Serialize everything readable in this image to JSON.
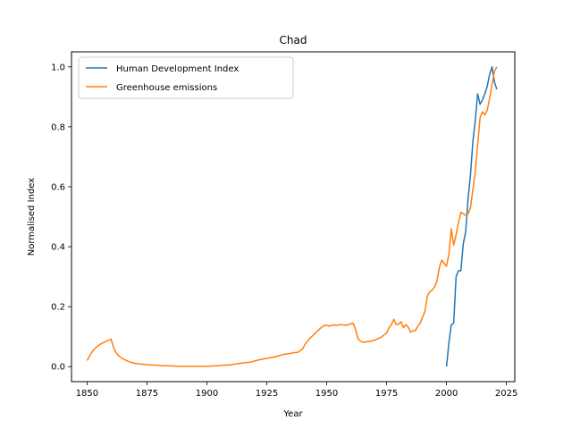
{
  "chart_data": {
    "type": "line",
    "title": "Chad",
    "xlabel": "Year",
    "ylabel": "Normalised Index",
    "xlim": [
      1843.5,
      2028.5
    ],
    "ylim": [
      -0.05,
      1.05
    ],
    "xticks": [
      1850,
      1875,
      1900,
      1925,
      1950,
      1975,
      2000,
      2025
    ],
    "yticks": [
      0.0,
      0.2,
      0.4,
      0.6,
      0.8,
      1.0
    ],
    "xtick_labels": [
      "1850",
      "1875",
      "1900",
      "1925",
      "1950",
      "1975",
      "2000",
      "2025"
    ],
    "ytick_labels": [
      "0.0",
      "0.2",
      "0.4",
      "0.6",
      "0.8",
      "1.0"
    ],
    "legend_position": "top-left",
    "grid": false,
    "series": [
      {
        "name": "Human Development Index",
        "color": "#1f77b4",
        "x": [
          2000,
          2001,
          2002,
          2003,
          2004,
          2005,
          2006,
          2007,
          2008,
          2009,
          2010,
          2011,
          2012,
          2013,
          2014,
          2015,
          2016,
          2017,
          2018,
          2019,
          2020,
          2021
        ],
        "y": [
          0.0,
          0.08,
          0.14,
          0.145,
          0.3,
          0.32,
          0.32,
          0.41,
          0.45,
          0.56,
          0.64,
          0.75,
          0.82,
          0.91,
          0.875,
          0.89,
          0.91,
          0.935,
          0.975,
          1.0,
          0.95,
          0.925
        ]
      },
      {
        "name": "Greenhouse emissions",
        "color": "#ff7f0e",
        "x": [
          1850,
          1851,
          1852,
          1853,
          1854,
          1855,
          1856,
          1857,
          1858,
          1859,
          1860,
          1861,
          1862,
          1863,
          1864,
          1865,
          1866,
          1867,
          1868,
          1869,
          1870,
          1872,
          1874,
          1876,
          1878,
          1880,
          1882,
          1884,
          1886,
          1888,
          1890,
          1892,
          1894,
          1896,
          1898,
          1900,
          1902,
          1904,
          1906,
          1908,
          1910,
          1912,
          1914,
          1916,
          1918,
          1920,
          1922,
          1924,
          1926,
          1928,
          1930,
          1932,
          1934,
          1936,
          1938,
          1940,
          1941,
          1942,
          1943,
          1944,
          1945,
          1946,
          1947,
          1948,
          1949,
          1950,
          1951,
          1952,
          1953,
          1954,
          1955,
          1956,
          1957,
          1958,
          1959,
          1960,
          1961,
          1962,
          1963,
          1964,
          1965,
          1966,
          1967,
          1968,
          1969,
          1970,
          1971,
          1972,
          1973,
          1974,
          1975,
          1976,
          1977,
          1978,
          1979,
          1980,
          1981,
          1982,
          1983,
          1984,
          1985,
          1986,
          1987,
          1988,
          1989,
          1990,
          1991,
          1992,
          1993,
          1994,
          1995,
          1996,
          1997,
          1998,
          1999,
          2000,
          2001,
          2002,
          2003,
          2004,
          2005,
          2006,
          2007,
          2008,
          2009,
          2010,
          2011,
          2012,
          2013,
          2014,
          2015,
          2016,
          2017,
          2018,
          2019,
          2020,
          2021
        ],
        "y": [
          0.02,
          0.035,
          0.048,
          0.058,
          0.066,
          0.072,
          0.077,
          0.081,
          0.085,
          0.088,
          0.092,
          0.065,
          0.048,
          0.038,
          0.031,
          0.026,
          0.022,
          0.018,
          0.015,
          0.013,
          0.011,
          0.009,
          0.007,
          0.006,
          0.005,
          0.004,
          0.003,
          0.003,
          0.002,
          0.001,
          0.001,
          0.001,
          0.001,
          0.001,
          0.001,
          0.001,
          0.002,
          0.003,
          0.004,
          0.005,
          0.006,
          0.009,
          0.011,
          0.013,
          0.015,
          0.019,
          0.023,
          0.026,
          0.029,
          0.032,
          0.036,
          0.041,
          0.043,
          0.046,
          0.048,
          0.06,
          0.075,
          0.085,
          0.095,
          0.102,
          0.11,
          0.118,
          0.125,
          0.132,
          0.137,
          0.138,
          0.135,
          0.138,
          0.139,
          0.138,
          0.139,
          0.14,
          0.139,
          0.138,
          0.14,
          0.143,
          0.145,
          0.125,
          0.095,
          0.085,
          0.082,
          0.082,
          0.083,
          0.085,
          0.086,
          0.088,
          0.092,
          0.095,
          0.1,
          0.106,
          0.112,
          0.13,
          0.14,
          0.158,
          0.14,
          0.142,
          0.15,
          0.13,
          0.14,
          0.132,
          0.115,
          0.12,
          0.12,
          0.135,
          0.145,
          0.165,
          0.185,
          0.235,
          0.25,
          0.255,
          0.265,
          0.285,
          0.33,
          0.355,
          0.345,
          0.335,
          0.375,
          0.46,
          0.405,
          0.44,
          0.48,
          0.515,
          0.51,
          0.505,
          0.51,
          0.53,
          0.59,
          0.65,
          0.74,
          0.83,
          0.85,
          0.84,
          0.855,
          0.895,
          0.94,
          0.985,
          1.0
        ]
      }
    ]
  }
}
